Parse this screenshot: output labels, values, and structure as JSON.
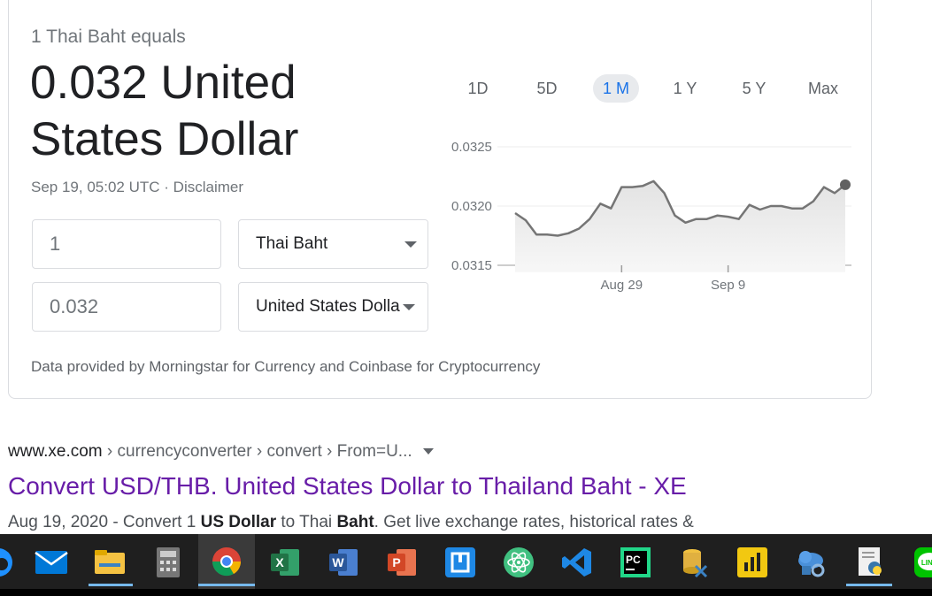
{
  "converter": {
    "equals_label": "1 Thai Baht equals",
    "result_text": "0.032 United States Dollar",
    "timestamp": "Sep 19, 05:02 UTC",
    "separator": "·",
    "disclaimer": "Disclaimer",
    "from_amount": "1",
    "from_currency": "Thai Baht",
    "to_amount": "0.032",
    "to_currency": "United States Dolla",
    "data_source": "Data provided by Morningstar for Currency and Coinbase for Cryptocurrency"
  },
  "ranges": [
    {
      "label": "1D",
      "active": false
    },
    {
      "label": "5D",
      "active": false
    },
    {
      "label": "1 M",
      "active": true
    },
    {
      "label": "1 Y",
      "active": false
    },
    {
      "label": "5 Y",
      "active": false
    },
    {
      "label": "Max",
      "active": false
    }
  ],
  "chart_data": {
    "type": "area",
    "ytick_labels": [
      "0.0325",
      "0.0320",
      "0.0315"
    ],
    "yticks": [
      0.0325,
      0.032,
      0.0315
    ],
    "ylim": [
      0.0315,
      0.0325
    ],
    "xtick_labels": [
      "Aug 29",
      "Sep 9"
    ],
    "xtick_positions": [
      10,
      20
    ],
    "values": [
      0.03194,
      0.03188,
      0.03176,
      0.03176,
      0.03175,
      0.03177,
      0.03181,
      0.03189,
      0.03202,
      0.03198,
      0.03216,
      0.03216,
      0.03217,
      0.03221,
      0.03211,
      0.03192,
      0.03186,
      0.03189,
      0.03189,
      0.03192,
      0.03191,
      0.03189,
      0.03201,
      0.03197,
      0.032,
      0.032,
      0.03198,
      0.03198,
      0.03204,
      0.03216,
      0.03211,
      0.03218
    ],
    "line_color": "#757575",
    "fill_color": "#e8e8e8"
  },
  "search_result": {
    "domain": "www.xe.com",
    "path": " › currencyconverter › convert › From=U...",
    "title": "Convert USD/THB. United States Dollar to Thailand Baht - XE",
    "date": "Aug 19, 2020",
    "snippet_1": " - Convert 1 ",
    "bold_1": "US Dollar",
    "snippet_2": " to Thai ",
    "bold_2": "Baht",
    "snippet_3": ". Get live exchange rates, historical rates &"
  },
  "taskbar": {
    "apps": [
      {
        "name": "edge-icon",
        "color": "#1e90ff"
      },
      {
        "name": "mail-icon",
        "color": "#0078d7"
      },
      {
        "name": "file-explorer-icon",
        "color": "#f5c242"
      },
      {
        "name": "calculator-icon",
        "color": "#6b6b6b"
      },
      {
        "name": "chrome-icon",
        "color": "#34a853"
      },
      {
        "name": "excel-icon",
        "color": "#217346"
      },
      {
        "name": "word-icon",
        "color": "#2b579a"
      },
      {
        "name": "powerpoint-icon",
        "color": "#d24726"
      },
      {
        "name": "workflow-icon",
        "color": "#1e88e5"
      },
      {
        "name": "atom-icon",
        "color": "#40c080"
      },
      {
        "name": "vscode-icon",
        "color": "#1e88e5"
      },
      {
        "name": "pycharm-icon",
        "color": "#21d789"
      },
      {
        "name": "database-tool-icon",
        "color": "#e0b040"
      },
      {
        "name": "power-bi-icon",
        "color": "#f2c811"
      },
      {
        "name": "cloud-tool-icon",
        "color": "#4a90d9"
      },
      {
        "name": "python-file-icon",
        "color": "#3776ab"
      },
      {
        "name": "line-icon",
        "color": "#00c300"
      }
    ],
    "app_labels": {
      "excel": "X",
      "word": "W",
      "powerpoint": "P",
      "pycharm": "PC",
      "line": "LINE"
    }
  }
}
